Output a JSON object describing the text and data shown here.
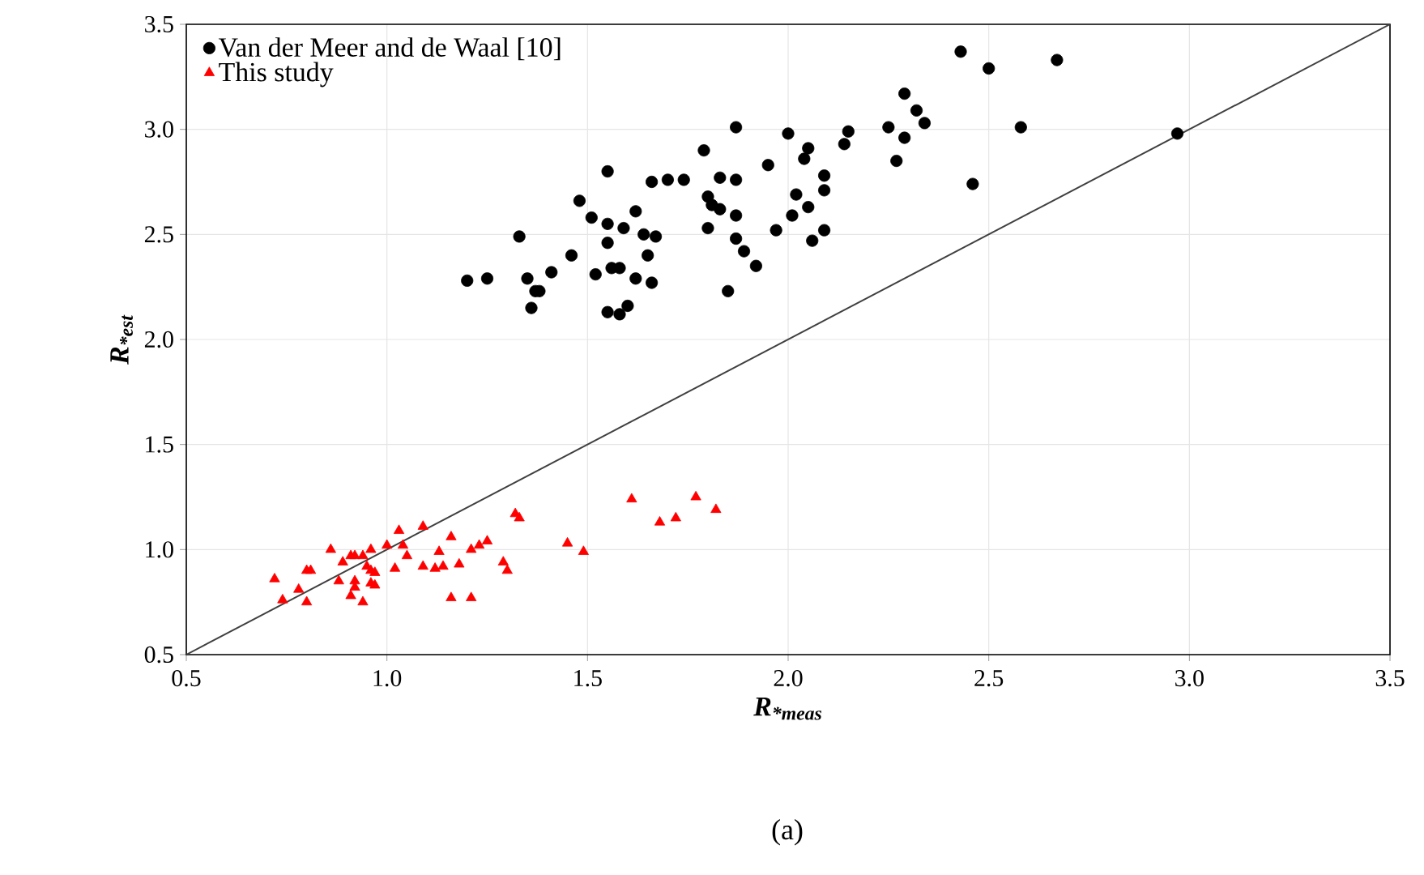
{
  "chart_data": {
    "type": "scatter",
    "xlabel": "R$_{*meas}$",
    "ylabel": "R$_{*est}$",
    "xlim": [
      0.5,
      3.5
    ],
    "ylim": [
      0.5,
      3.5
    ],
    "xticks": [
      0.5,
      {
        "value": 1,
        "label": "1.0"
      },
      1.5,
      {
        "value": 2,
        "label": "2.0"
      },
      2.5,
      {
        "value": 3,
        "label": "3.0"
      },
      3.5
    ],
    "yticks": [
      0.5,
      {
        "value": 1,
        "label": "1.0"
      },
      1.5,
      {
        "value": 2,
        "label": "2.0"
      },
      2.5,
      {
        "value": 3,
        "label": "3.0"
      },
      3.5
    ],
    "grid": true,
    "legend": "top left",
    "annotations": [
      "(a)"
    ],
    "series": [
      {
        "name": "Van der Meer and de Waal [10]",
        "color": "#000000",
        "marker": "circle",
        "x": [
          1.2,
          1.25,
          1.33,
          1.35,
          1.37,
          1.38,
          1.36,
          1.41,
          1.46,
          1.48,
          1.51,
          1.55,
          1.55,
          1.59,
          1.55,
          1.52,
          1.56,
          1.58,
          1.55,
          1.58,
          1.6,
          1.62,
          1.66,
          1.62,
          1.64,
          1.67,
          1.65,
          1.66,
          1.7,
          1.74,
          1.79,
          1.8,
          1.81,
          1.83,
          1.8,
          1.83,
          1.87,
          1.87,
          1.87,
          1.87,
          1.89,
          1.92,
          1.85,
          1.95,
          1.97,
          2.0,
          2.01,
          2.02,
          2.05,
          2.04,
          2.05,
          2.09,
          2.09,
          2.06,
          2.09,
          2.15,
          2.14,
          2.43,
          2.5,
          2.67,
          2.29,
          2.32,
          2.34,
          2.25,
          2.29,
          2.27,
          2.58,
          2.46,
          2.97
        ],
        "values": [
          2.28,
          2.29,
          2.49,
          2.29,
          2.23,
          2.23,
          2.15,
          2.32,
          2.4,
          2.66,
          2.58,
          2.8,
          2.55,
          2.53,
          2.46,
          2.31,
          2.34,
          2.34,
          2.13,
          2.12,
          2.16,
          2.29,
          2.27,
          2.61,
          2.5,
          2.49,
          2.4,
          2.75,
          2.76,
          2.76,
          2.9,
          2.68,
          2.64,
          2.62,
          2.53,
          2.77,
          2.76,
          3.01,
          2.59,
          2.48,
          2.42,
          2.35,
          2.23,
          2.83,
          2.52,
          2.98,
          2.59,
          2.69,
          2.91,
          2.86,
          2.63,
          2.78,
          2.71,
          2.47,
          2.52,
          2.99,
          2.93,
          3.37,
          3.29,
          3.33,
          3.17,
          3.09,
          3.03,
          3.01,
          2.96,
          2.85,
          3.01,
          2.74,
          2.98
        ]
      },
      {
        "name": "This study",
        "color": "#ff0000",
        "marker": "triangle",
        "x": [
          0.72,
          0.74,
          0.78,
          0.8,
          0.8,
          0.81,
          0.86,
          0.88,
          0.89,
          0.91,
          0.92,
          0.92,
          0.91,
          0.92,
          0.94,
          0.94,
          0.96,
          0.95,
          0.96,
          0.96,
          0.97,
          0.97,
          1.0,
          1.03,
          1.04,
          1.05,
          1.02,
          1.09,
          1.09,
          1.12,
          1.13,
          1.14,
          1.16,
          1.16,
          1.18,
          1.21,
          1.21,
          1.23,
          1.25,
          1.29,
          1.3,
          1.32,
          1.33,
          1.45,
          1.49,
          1.61,
          1.68,
          1.72,
          1.77,
          1.82
        ],
        "values": [
          0.86,
          0.76,
          0.81,
          0.75,
          0.9,
          0.9,
          1.0,
          0.85,
          0.94,
          0.97,
          0.97,
          0.85,
          0.78,
          0.82,
          0.75,
          0.97,
          1.0,
          0.92,
          0.9,
          0.84,
          0.89,
          0.83,
          1.02,
          1.09,
          1.02,
          0.97,
          0.91,
          1.11,
          0.92,
          0.91,
          0.99,
          0.92,
          1.06,
          0.77,
          0.93,
          0.77,
          1.0,
          1.02,
          1.04,
          0.94,
          0.9,
          1.17,
          1.15,
          1.03,
          0.99,
          1.24,
          1.13,
          1.15,
          1.25,
          1.19
        ]
      },
      {
        "type": "line",
        "color": "#404040",
        "marker": "none",
        "x": [
          0.5,
          3.5
        ],
        "values": [
          0.5,
          3.5
        ]
      }
    ]
  }
}
